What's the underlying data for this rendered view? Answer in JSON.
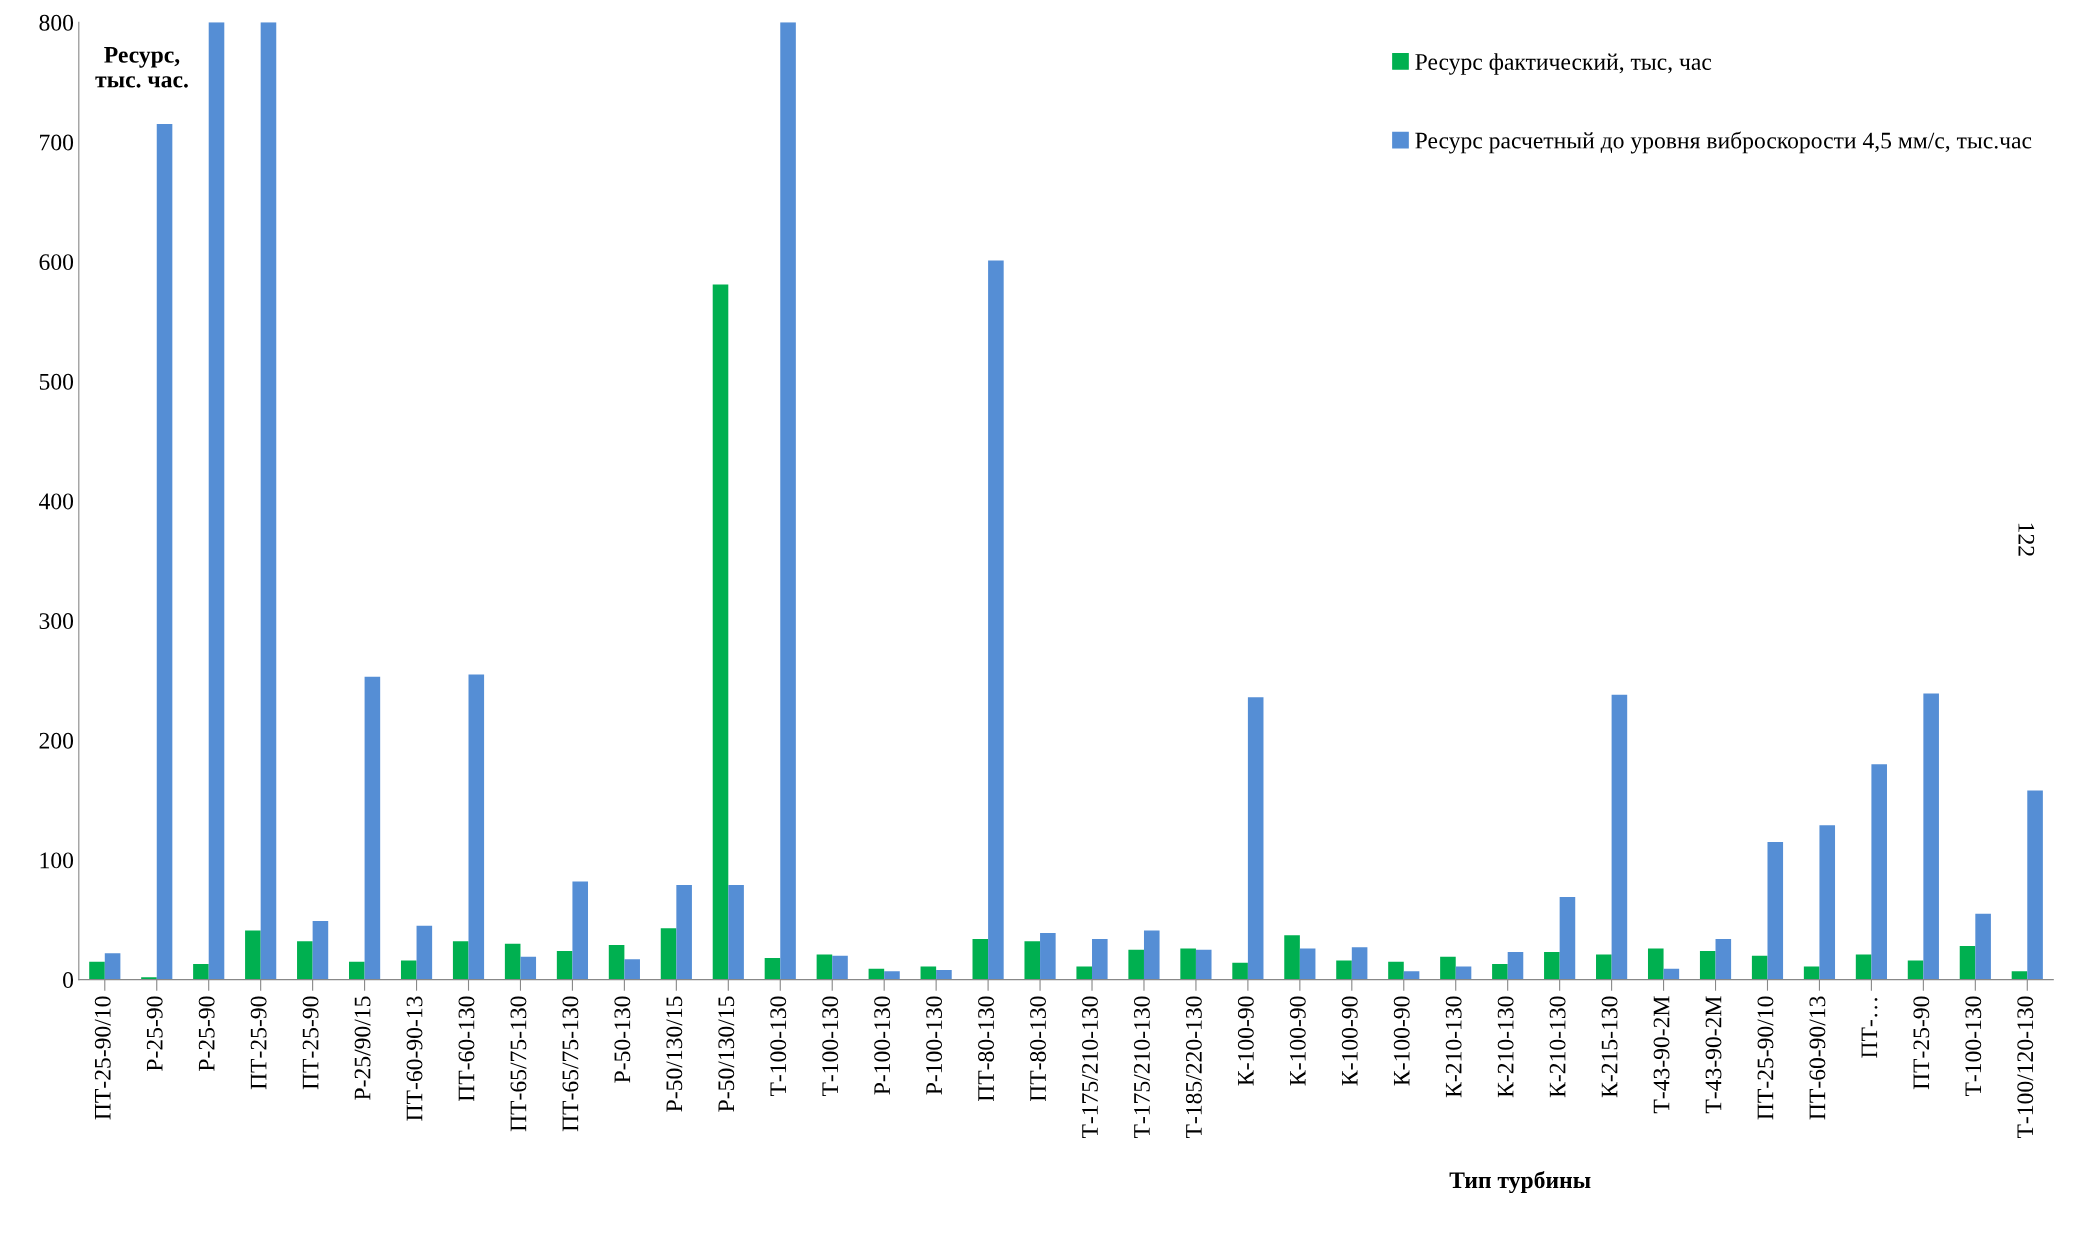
{
  "chart_data": {
    "type": "bar",
    "ylabel": "Ресурс,\nтыс. час.",
    "xlabel": "Тип турбины",
    "categories": [
      "ПТ-25-90/10",
      "Р-25-90",
      "Р-25-90",
      "ПТ-25-90",
      "ПТ-25-90",
      "Р-25/90/15",
      "ПТ-60-90-13",
      "ПТ-60-130",
      "ПТ-65/75-130",
      "ПТ-65/75-130",
      "Р-50-130",
      "Р-50/130/15",
      "Р-50/130/15",
      "Т-100-130",
      "Т-100-130",
      "Р-100-130",
      "Р-100-130",
      "ПТ-80-130",
      "ПТ-80-130",
      "Т-175/210-130",
      "Т-175/210-130",
      "Т-185/220-130",
      "К-100-90",
      "К-100-90",
      "К-100-90",
      "К-100-90",
      "К-210-130",
      "К-210-130",
      "К-210-130",
      "К-215-130",
      "Т-43-90-2М",
      "Т-43-90-2М",
      "ПТ-25-90/10",
      "ПТ-60-90/13",
      "ПТ-…",
      "ПТ-25-90",
      "Т-100-130",
      "Т-100/120-130"
    ],
    "series": [
      {
        "name": "Ресурс фактический, тыс, час",
        "color": "#00b050",
        "values": [
          15,
          2,
          13,
          41,
          32,
          15,
          16,
          32,
          30,
          24,
          29,
          43,
          581,
          18,
          21,
          9,
          11,
          34,
          32,
          11,
          25,
          26,
          14,
          37,
          16,
          15,
          19,
          13,
          23,
          21,
          26,
          24,
          20,
          11,
          21,
          16,
          28,
          7
        ]
      },
      {
        "name": "Ресурс расчетный до уровня виброскорости 4,5 мм/с, тыс.час",
        "color": "#558ed5",
        "values": [
          22,
          715,
          800,
          800,
          49,
          253,
          45,
          255,
          19,
          82,
          17,
          79,
          79,
          800,
          20,
          7,
          8,
          601,
          39,
          34,
          41,
          25,
          236,
          26,
          27,
          7,
          11,
          23,
          69,
          238,
          9,
          34,
          115,
          129,
          180,
          239,
          55,
          158
        ]
      }
    ],
    "ylim": [
      0,
      800
    ],
    "yticks": [
      0,
      100,
      200,
      300,
      400,
      500,
      600,
      700,
      800
    ],
    "legend": "top right",
    "annotations": [
      "122"
    ]
  }
}
